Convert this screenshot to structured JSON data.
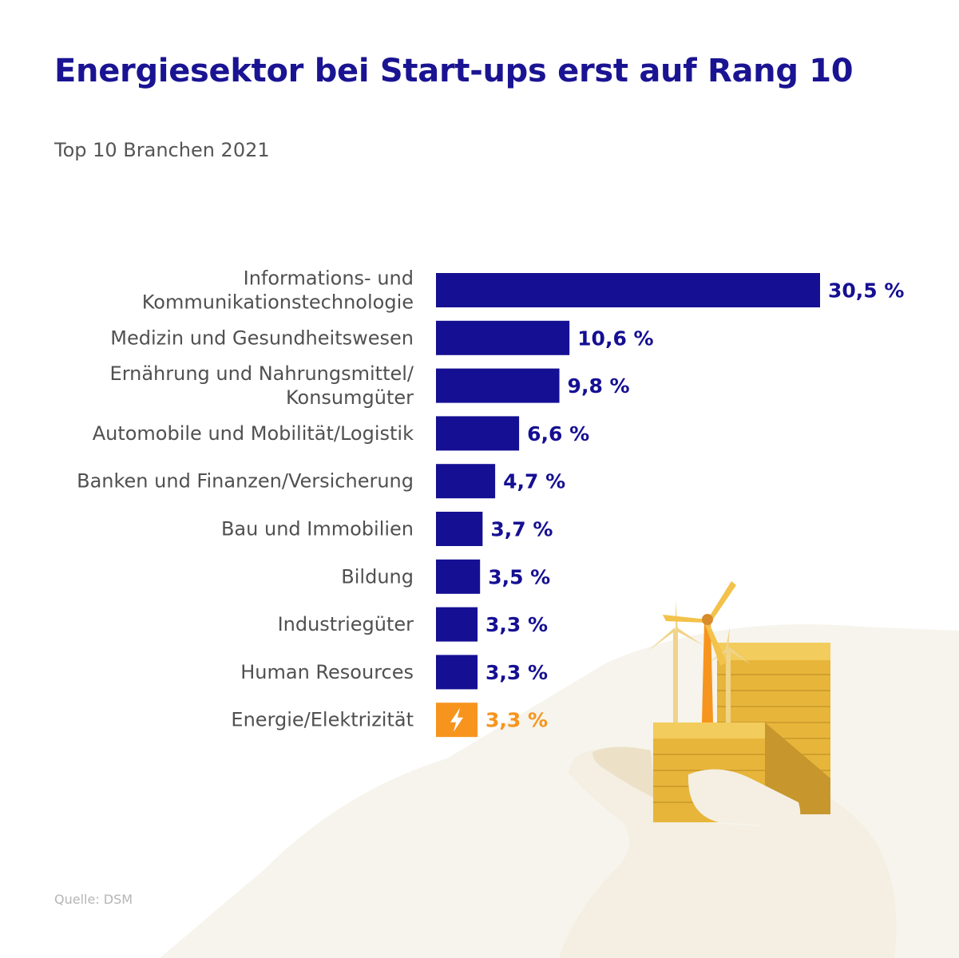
{
  "header": {
    "title": "Energiesektor bei Start-ups erst auf Rang 10",
    "subtitle": "Top 10 Branchen 2021"
  },
  "footer": {
    "source": "Quelle: DSM"
  },
  "colors": {
    "bar": "#150f93",
    "highlight": "#f7941d",
    "label": "#505050",
    "title": "#1a1493"
  },
  "icons": {
    "highlight_bar_icon": "lightning-bolt-icon",
    "illustration": "hand-holding-coins-and-wind-turbines"
  },
  "chart_data": {
    "type": "bar",
    "orientation": "horizontal",
    "title": "Energiesektor bei Start-ups erst auf Rang 10",
    "subtitle": "Top 10 Branchen 2021",
    "unit": "%",
    "categories": [
      [
        "Informations- und",
        "Kommunikationstechnologie"
      ],
      [
        "Medizin und Gesundheitswesen"
      ],
      [
        "Ernährung und Nahrungsmittel/",
        "Konsumgüter"
      ],
      [
        "Automobile und Mobilität/Logistik"
      ],
      [
        "Banken und Finanzen/Versicherung"
      ],
      [
        "Bau und Immobilien"
      ],
      [
        "Bildung"
      ],
      [
        "Industriegüter"
      ],
      [
        "Human Resources"
      ],
      [
        "Energie/Elektrizität"
      ]
    ],
    "values": [
      30.5,
      10.6,
      9.8,
      6.6,
      4.7,
      3.7,
      3.5,
      3.3,
      3.3,
      3.3
    ],
    "value_labels": [
      "30,5 %",
      "10,6 %",
      "9,8 %",
      "6,6 %",
      "4,7 %",
      "3,7 %",
      "3,5 %",
      "3,3 %",
      "3,3 %",
      "3,3 %"
    ],
    "highlight_index": 9,
    "grid": false,
    "legend": "none"
  }
}
